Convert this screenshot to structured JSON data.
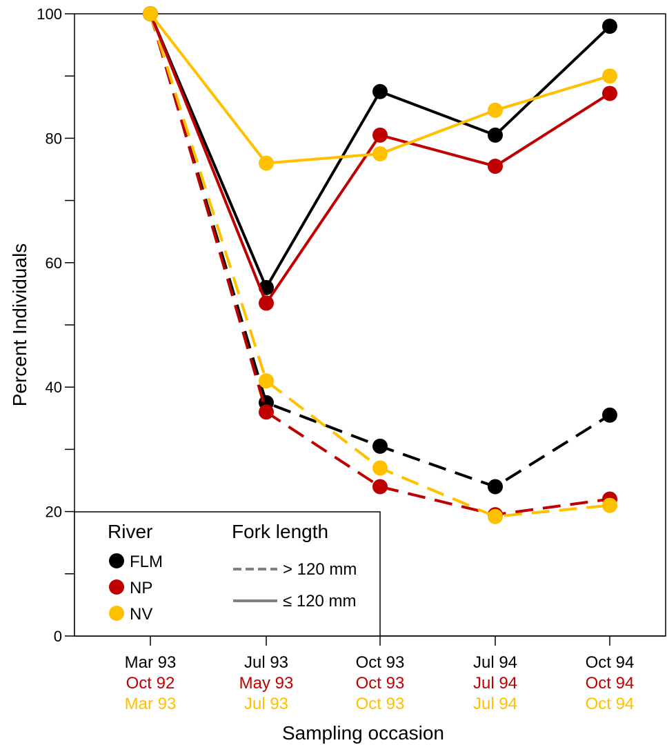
{
  "chart_data": {
    "type": "line",
    "xlabel": "Sampling occasion",
    "ylabel": "Percent Individuals",
    "ylim": [
      0,
      100
    ],
    "yticks": [
      0,
      20,
      40,
      60,
      80,
      100
    ],
    "categories": [
      {
        "labels": [
          "Mar 93",
          "Oct 92",
          "Mar 93"
        ]
      },
      {
        "labels": [
          "Jul 93",
          "May 93",
          "Jul 93"
        ]
      },
      {
        "labels": [
          "Oct 93",
          "Oct 93",
          "Oct 93"
        ]
      },
      {
        "labels": [
          "Jul 94",
          "Jul 94",
          "Jul 94"
        ]
      },
      {
        "labels": [
          "Oct 94",
          "Oct 94",
          "Oct 94"
        ]
      }
    ],
    "series": [
      {
        "river": "FLM",
        "fork_length": "> 120 mm",
        "color": "#000000",
        "style": "dashed",
        "values": [
          100,
          37.5,
          30.5,
          24,
          35.5
        ]
      },
      {
        "river": "NP",
        "fork_length": "> 120 mm",
        "color": "#c00000",
        "style": "dashed",
        "values": [
          100,
          36,
          24,
          19.5,
          22
        ]
      },
      {
        "river": "NV",
        "fork_length": "> 120 mm",
        "color": "#ffc000",
        "style": "dashed",
        "values": [
          100,
          41,
          27,
          19.2,
          21
        ]
      },
      {
        "river": "FLM",
        "fork_length": "≤ 120 mm",
        "color": "#000000",
        "style": "solid",
        "values": [
          100,
          56,
          87.5,
          80.5,
          98
        ]
      },
      {
        "river": "NP",
        "fork_length": "≤ 120 mm",
        "color": "#c00000",
        "style": "solid",
        "values": [
          100,
          53.5,
          80.5,
          75.5,
          87.2
        ]
      },
      {
        "river": "NV",
        "fork_length": "≤ 120 mm",
        "color": "#ffc000",
        "style": "solid",
        "values": [
          100,
          76,
          77.5,
          84.5,
          90
        ]
      }
    ],
    "legend": {
      "placement": "bottom-left",
      "river_title": "River",
      "rivers": [
        {
          "name": "FLM",
          "color": "#000000"
        },
        {
          "name": "NP",
          "color": "#c00000"
        },
        {
          "name": "NV",
          "color": "#ffc000"
        }
      ],
      "fork_title": "Fork length",
      "fork_items": [
        {
          "label": "> 120 mm",
          "style": "dashed"
        },
        {
          "label": "≤ 120 mm",
          "style": "solid"
        }
      ]
    },
    "label_colors": [
      "#000000",
      "#c00000",
      "#ffc000"
    ]
  }
}
